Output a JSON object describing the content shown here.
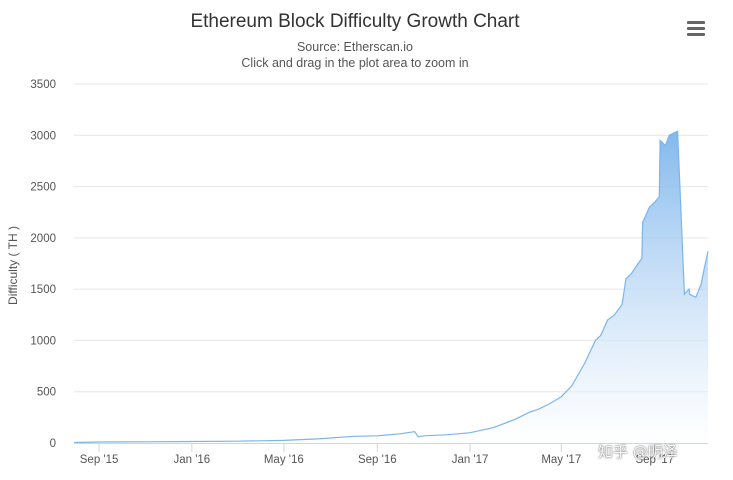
{
  "chart_data": {
    "type": "area",
    "title": "Ethereum Block Difficulty Growth Chart",
    "subtitle": "Source: Etherscan.io",
    "subtitle2": "Click and drag in the plot area to zoom in",
    "xlabel": "",
    "ylabel": "Difficulty ( TH )",
    "ylim": [
      0,
      3500
    ],
    "yticks": [
      0,
      500,
      1000,
      1500,
      2000,
      2500,
      3000,
      3500
    ],
    "xlim": [
      "2015-07-30",
      "2017-11-10"
    ],
    "xticks": [
      {
        "label": "Sep '15",
        "date": "2015-09-01"
      },
      {
        "label": "Jan '16",
        "date": "2016-01-01"
      },
      {
        "label": "May '16",
        "date": "2016-05-01"
      },
      {
        "label": "Sep '16",
        "date": "2016-09-01"
      },
      {
        "label": "Jan '17",
        "date": "2017-01-01"
      },
      {
        "label": "May '17",
        "date": "2017-05-01"
      },
      {
        "label": "Sep '17",
        "date": "2017-09-01"
      }
    ],
    "grid": true,
    "legend": "none",
    "colors": {
      "line": "#7cb5ec",
      "fill_top": "#7cb5ec",
      "fill_bottom": "#ffffff",
      "grid": "#e6e6e6",
      "axis": "#ccd6eb"
    },
    "series": [
      {
        "x": [
          "2015-07-30",
          "2015-09-01",
          "2015-11-01",
          "2016-01-01",
          "2016-03-01",
          "2016-05-01",
          "2016-06-15",
          "2016-08-01",
          "2016-09-01",
          "2016-10-01",
          "2016-10-20",
          "2016-10-25",
          "2016-11-01",
          "2016-12-01",
          "2017-01-01",
          "2017-02-01",
          "2017-03-01",
          "2017-03-20",
          "2017-04-01",
          "2017-04-15",
          "2017-05-01",
          "2017-05-15",
          "2017-06-01",
          "2017-06-15",
          "2017-06-22",
          "2017-07-01",
          "2017-07-10",
          "2017-07-20",
          "2017-07-25",
          "2017-08-01",
          "2017-08-10",
          "2017-08-15",
          "2017-08-16",
          "2017-08-25",
          "2017-09-01",
          "2017-09-07",
          "2017-09-08",
          "2017-09-15",
          "2017-09-20",
          "2017-10-01",
          "2017-10-10",
          "2017-10-16",
          "2017-10-17",
          "2017-10-25",
          "2017-11-01",
          "2017-11-05",
          "2017-11-10"
        ],
        "values": [
          5,
          10,
          12,
          15,
          18,
          25,
          40,
          65,
          70,
          90,
          110,
          60,
          70,
          80,
          100,
          150,
          230,
          300,
          330,
          380,
          450,
          560,
          780,
          1000,
          1050,
          1200,
          1250,
          1350,
          1600,
          1650,
          1750,
          1800,
          2150,
          2300,
          2350,
          2400,
          2950,
          2900,
          3000,
          3040,
          1450,
          1500,
          1450,
          1420,
          1550,
          1700,
          1870
        ]
      }
    ]
  },
  "menu": {
    "icon": "hamburger-menu-icon"
  },
  "watermark": "知乎 @明泽"
}
